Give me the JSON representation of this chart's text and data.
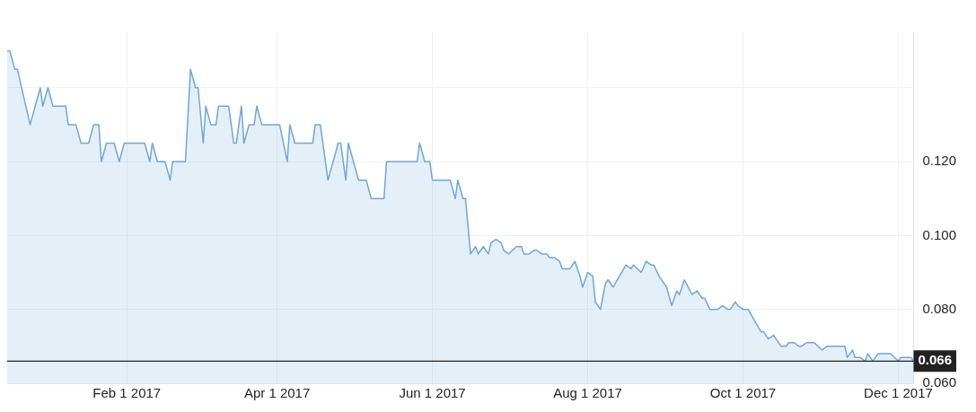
{
  "chart_data": {
    "type": "area",
    "x": [
      "2016-12-16",
      "2016-12-17",
      "2016-12-19",
      "2016-12-20",
      "2016-12-25",
      "2016-12-29",
      "2016-12-30",
      "2017-01-01",
      "2017-01-03",
      "2017-01-08",
      "2017-01-09",
      "2017-01-12",
      "2017-01-14",
      "2017-01-17",
      "2017-01-19",
      "2017-01-21",
      "2017-01-22",
      "2017-01-24",
      "2017-01-27",
      "2017-01-29",
      "2017-01-31",
      "2017-02-08",
      "2017-02-10",
      "2017-02-11",
      "2017-02-13",
      "2017-02-16",
      "2017-02-18",
      "2017-02-19",
      "2017-02-24",
      "2017-02-26",
      "2017-02-28",
      "2017-03-01",
      "2017-03-03",
      "2017-03-04",
      "2017-03-06",
      "2017-03-08",
      "2017-03-09",
      "2017-03-13",
      "2017-03-15",
      "2017-03-16",
      "2017-03-18",
      "2017-03-19",
      "2017-03-21",
      "2017-03-23",
      "2017-03-24",
      "2017-03-26",
      "2017-04-02",
      "2017-04-05",
      "2017-04-06",
      "2017-04-08",
      "2017-04-15",
      "2017-04-16",
      "2017-04-18",
      "2017-04-20",
      "2017-04-21",
      "2017-04-25",
      "2017-04-26",
      "2017-04-28",
      "2017-04-29",
      "2017-05-03",
      "2017-05-06",
      "2017-05-08",
      "2017-05-13",
      "2017-05-14",
      "2017-05-26",
      "2017-05-27",
      "2017-05-29",
      "2017-05-31",
      "2017-06-01",
      "2017-06-08",
      "2017-06-10",
      "2017-06-11",
      "2017-06-13",
      "2017-06-14",
      "2017-06-16",
      "2017-06-18",
      "2017-06-19",
      "2017-06-21",
      "2017-06-23",
      "2017-06-24",
      "2017-06-26",
      "2017-06-28",
      "2017-06-29",
      "2017-07-01",
      "2017-07-04",
      "2017-07-06",
      "2017-07-07",
      "2017-07-09",
      "2017-07-11",
      "2017-07-12",
      "2017-07-14",
      "2017-07-16",
      "2017-07-17",
      "2017-07-19",
      "2017-07-21",
      "2017-07-22",
      "2017-07-25",
      "2017-07-27",
      "2017-07-29",
      "2017-07-30",
      "2017-08-01",
      "2017-08-03",
      "2017-08-04",
      "2017-08-06",
      "2017-08-08",
      "2017-08-09",
      "2017-08-11",
      "2017-08-16",
      "2017-08-18",
      "2017-08-19",
      "2017-08-22",
      "2017-08-24",
      "2017-08-26",
      "2017-08-27",
      "2017-08-29",
      "2017-08-31",
      "2017-09-01",
      "2017-09-03",
      "2017-09-05",
      "2017-09-06",
      "2017-09-08",
      "2017-09-11",
      "2017-09-13",
      "2017-09-15",
      "2017-09-16",
      "2017-09-18",
      "2017-09-21",
      "2017-09-23",
      "2017-09-25",
      "2017-09-26",
      "2017-09-28",
      "2017-09-29",
      "2017-10-01",
      "2017-10-03",
      "2017-10-08",
      "2017-10-09",
      "2017-10-11",
      "2017-10-13",
      "2017-10-14",
      "2017-10-16",
      "2017-10-18",
      "2017-10-19",
      "2017-10-21",
      "2017-10-23",
      "2017-10-24",
      "2017-10-26",
      "2017-10-29",
      "2017-11-01",
      "2017-11-03",
      "2017-11-10",
      "2017-11-11",
      "2017-11-13",
      "2017-11-14",
      "2017-11-16",
      "2017-11-18",
      "2017-11-19",
      "2017-11-21",
      "2017-11-23",
      "2017-11-28",
      "2017-12-01",
      "2017-12-02",
      "2017-12-06",
      "2017-12-07"
    ],
    "series": [
      {
        "color": "#6fa6d8",
        "values": [
          0.15,
          0.15,
          0.145,
          0.145,
          0.13,
          0.14,
          0.135,
          0.14,
          0.135,
          0.135,
          0.13,
          0.13,
          0.125,
          0.125,
          0.13,
          0.13,
          0.12,
          0.125,
          0.125,
          0.12,
          0.125,
          0.125,
          0.12,
          0.125,
          0.12,
          0.12,
          0.115,
          0.12,
          0.12,
          0.145,
          0.14,
          0.14,
          0.125,
          0.135,
          0.13,
          0.13,
          0.135,
          0.135,
          0.125,
          0.125,
          0.135,
          0.125,
          0.13,
          0.13,
          0.135,
          0.13,
          0.13,
          0.12,
          0.13,
          0.125,
          0.125,
          0.13,
          0.13,
          0.12,
          0.115,
          0.125,
          0.125,
          0.115,
          0.125,
          0.115,
          0.115,
          0.11,
          0.11,
          0.12,
          0.12,
          0.125,
          0.12,
          0.12,
          0.115,
          0.115,
          0.11,
          0.115,
          0.11,
          0.11,
          0.095,
          0.097,
          0.095,
          0.097,
          0.095,
          0.098,
          0.099,
          0.098,
          0.096,
          0.095,
          0.097,
          0.097,
          0.095,
          0.095,
          0.096,
          0.096,
          0.095,
          0.095,
          0.094,
          0.094,
          0.093,
          0.091,
          0.091,
          0.093,
          0.089,
          0.086,
          0.09,
          0.089,
          0.082,
          0.08,
          0.087,
          0.088,
          0.086,
          0.092,
          0.091,
          0.092,
          0.09,
          0.093,
          0.092,
          0.092,
          0.089,
          0.087,
          0.086,
          0.081,
          0.085,
          0.084,
          0.088,
          0.084,
          0.085,
          0.083,
          0.083,
          0.08,
          0.08,
          0.081,
          0.08,
          0.08,
          0.082,
          0.081,
          0.08,
          0.08,
          0.074,
          0.074,
          0.072,
          0.073,
          0.072,
          0.07,
          0.07,
          0.071,
          0.071,
          0.07,
          0.07,
          0.071,
          0.071,
          0.069,
          0.07,
          0.07,
          0.067,
          0.069,
          0.067,
          0.067,
          0.066,
          0.068,
          0.066,
          0.068,
          0.068,
          0.066,
          0.067,
          0.067,
          0.066
        ]
      }
    ],
    "xlim": [
      "2016-12-16",
      "2017-12-07"
    ],
    "xticks": [
      {
        "value": "2017-02-01",
        "label": "Feb 1 2017"
      },
      {
        "value": "2017-04-01",
        "label": "Apr 1 2017"
      },
      {
        "value": "2017-06-01",
        "label": "Jun 1 2017"
      },
      {
        "value": "2017-08-01",
        "label": "Aug 1 2017"
      },
      {
        "value": "2017-10-01",
        "label": "Oct 1 2017"
      },
      {
        "value": "2017-12-01",
        "label": "Dec 1 2017"
      }
    ],
    "ylim": [
      0.06,
      0.155
    ],
    "yticks": [
      {
        "value": 0.06,
        "label": "0.060"
      },
      {
        "value": 0.08,
        "label": "0.080"
      },
      {
        "value": 0.1,
        "label": "0.100"
      },
      {
        "value": 0.12,
        "label": "0.120"
      },
      {
        "value": 0.14,
        "label": null
      }
    ],
    "grid": true,
    "ref_lines": [
      {
        "axis": "y",
        "value": 0.066,
        "label": "0.066",
        "color": "#222222"
      }
    ]
  }
}
